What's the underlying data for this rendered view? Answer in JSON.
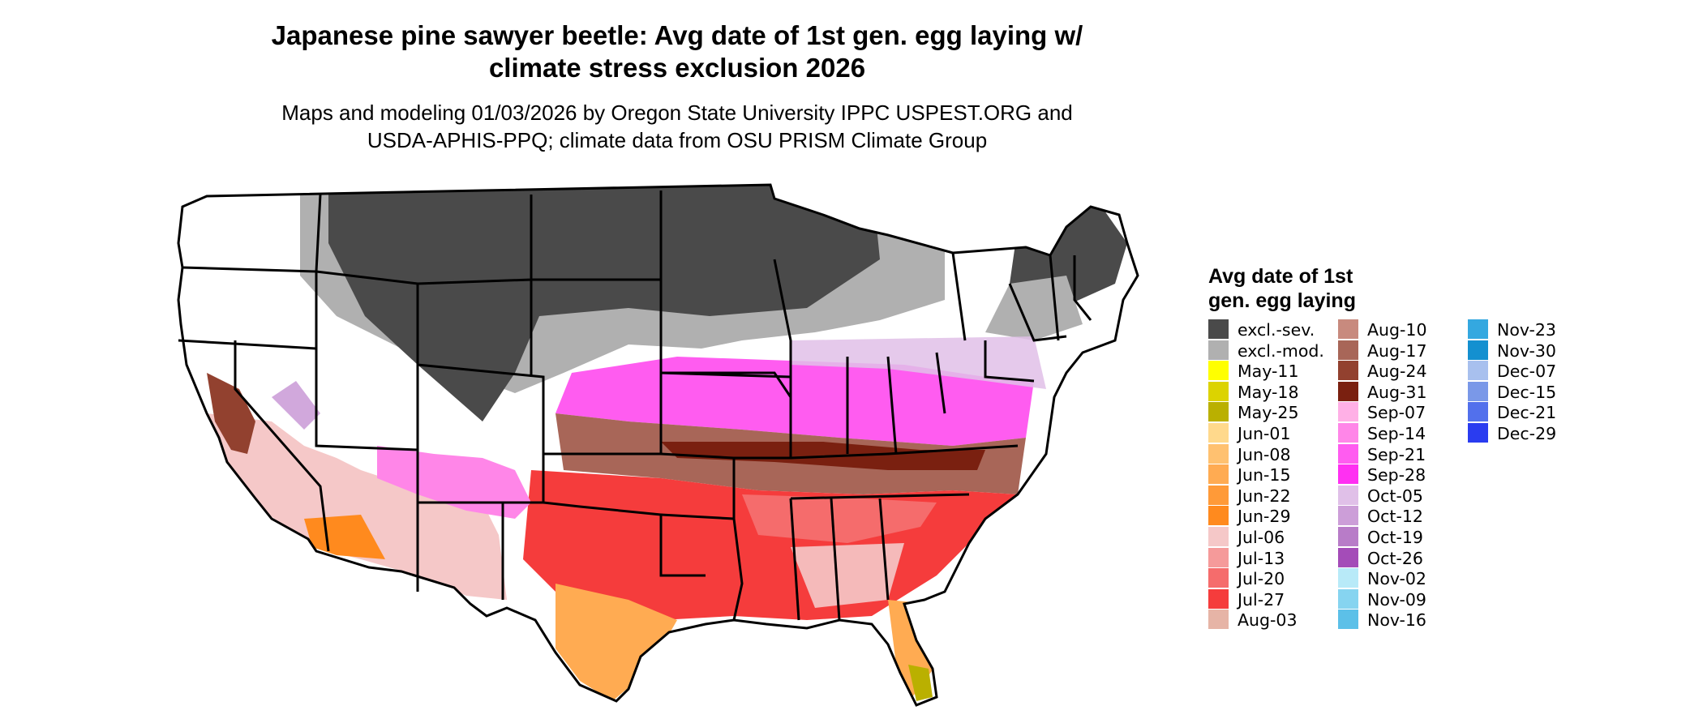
{
  "title_line1": "Japanese pine sawyer beetle: Avg date of 1st gen. egg laying w/",
  "title_line2": "climate stress exclusion 2026",
  "subtitle_line1": "Maps and modeling 01/03/2026 by Oregon State University IPPC USPEST.ORG and",
  "subtitle_line2": "USDA-APHIS-PPQ; climate data from OSU PRISM Climate Group",
  "legend": {
    "title_line1": "Avg date of 1st",
    "title_line2": "gen. egg laying",
    "columns": [
      [
        {
          "label": "excl.-sev.",
          "color": "#4a4a4a"
        },
        {
          "label": "excl.-mod.",
          "color": "#b0b0b0"
        },
        {
          "label": "May-11",
          "color": "#ffff00"
        },
        {
          "label": "May-18",
          "color": "#dcd300"
        },
        {
          "label": "May-25",
          "color": "#bab000"
        },
        {
          "label": "Jun-01",
          "color": "#ffd98c"
        },
        {
          "label": "Jun-08",
          "color": "#ffc170"
        },
        {
          "label": "Jun-15",
          "color": "#ffab52"
        },
        {
          "label": "Jun-22",
          "color": "#ff9a38"
        },
        {
          "label": "Jun-29",
          "color": "#ff8a1e"
        },
        {
          "label": "Jul-06",
          "color": "#f5c8c8"
        },
        {
          "label": "Jul-13",
          "color": "#f59a9a"
        },
        {
          "label": "Jul-20",
          "color": "#f56c6c"
        },
        {
          "label": "Jul-27",
          "color": "#f53c3c"
        },
        {
          "label": "Aug-03",
          "color": "#e6b4a6"
        }
      ],
      [
        {
          "label": "Aug-10",
          "color": "#c88a7e"
        },
        {
          "label": "Aug-17",
          "color": "#a86658"
        },
        {
          "label": "Aug-24",
          "color": "#92412f"
        },
        {
          "label": "Aug-31",
          "color": "#7a2010"
        },
        {
          "label": "Sep-07",
          "color": "#ffb0e6"
        },
        {
          "label": "Sep-14",
          "color": "#ff86e8"
        },
        {
          "label": "Sep-21",
          "color": "#ff5cf0"
        },
        {
          "label": "Sep-28",
          "color": "#ff30f2"
        },
        {
          "label": "Oct-05",
          "color": "#e0c0e8"
        },
        {
          "label": "Oct-12",
          "color": "#cc9ed8"
        },
        {
          "label": "Oct-19",
          "color": "#b87cc8"
        },
        {
          "label": "Oct-26",
          "color": "#a44cb8"
        },
        {
          "label": "Nov-02",
          "color": "#b8eaf8"
        },
        {
          "label": "Nov-09",
          "color": "#86d4f0"
        },
        {
          "label": "Nov-16",
          "color": "#5cc0e8"
        }
      ],
      [
        {
          "label": "Nov-23",
          "color": "#34a8e0"
        },
        {
          "label": "Nov-30",
          "color": "#1490d0"
        },
        {
          "label": "Dec-07",
          "color": "#a8c0ee"
        },
        {
          "label": "Dec-15",
          "color": "#7a98e8"
        },
        {
          "label": "Dec-21",
          "color": "#5270ec"
        },
        {
          "label": "Dec-29",
          "color": "#2a3cf0"
        }
      ]
    ]
  }
}
